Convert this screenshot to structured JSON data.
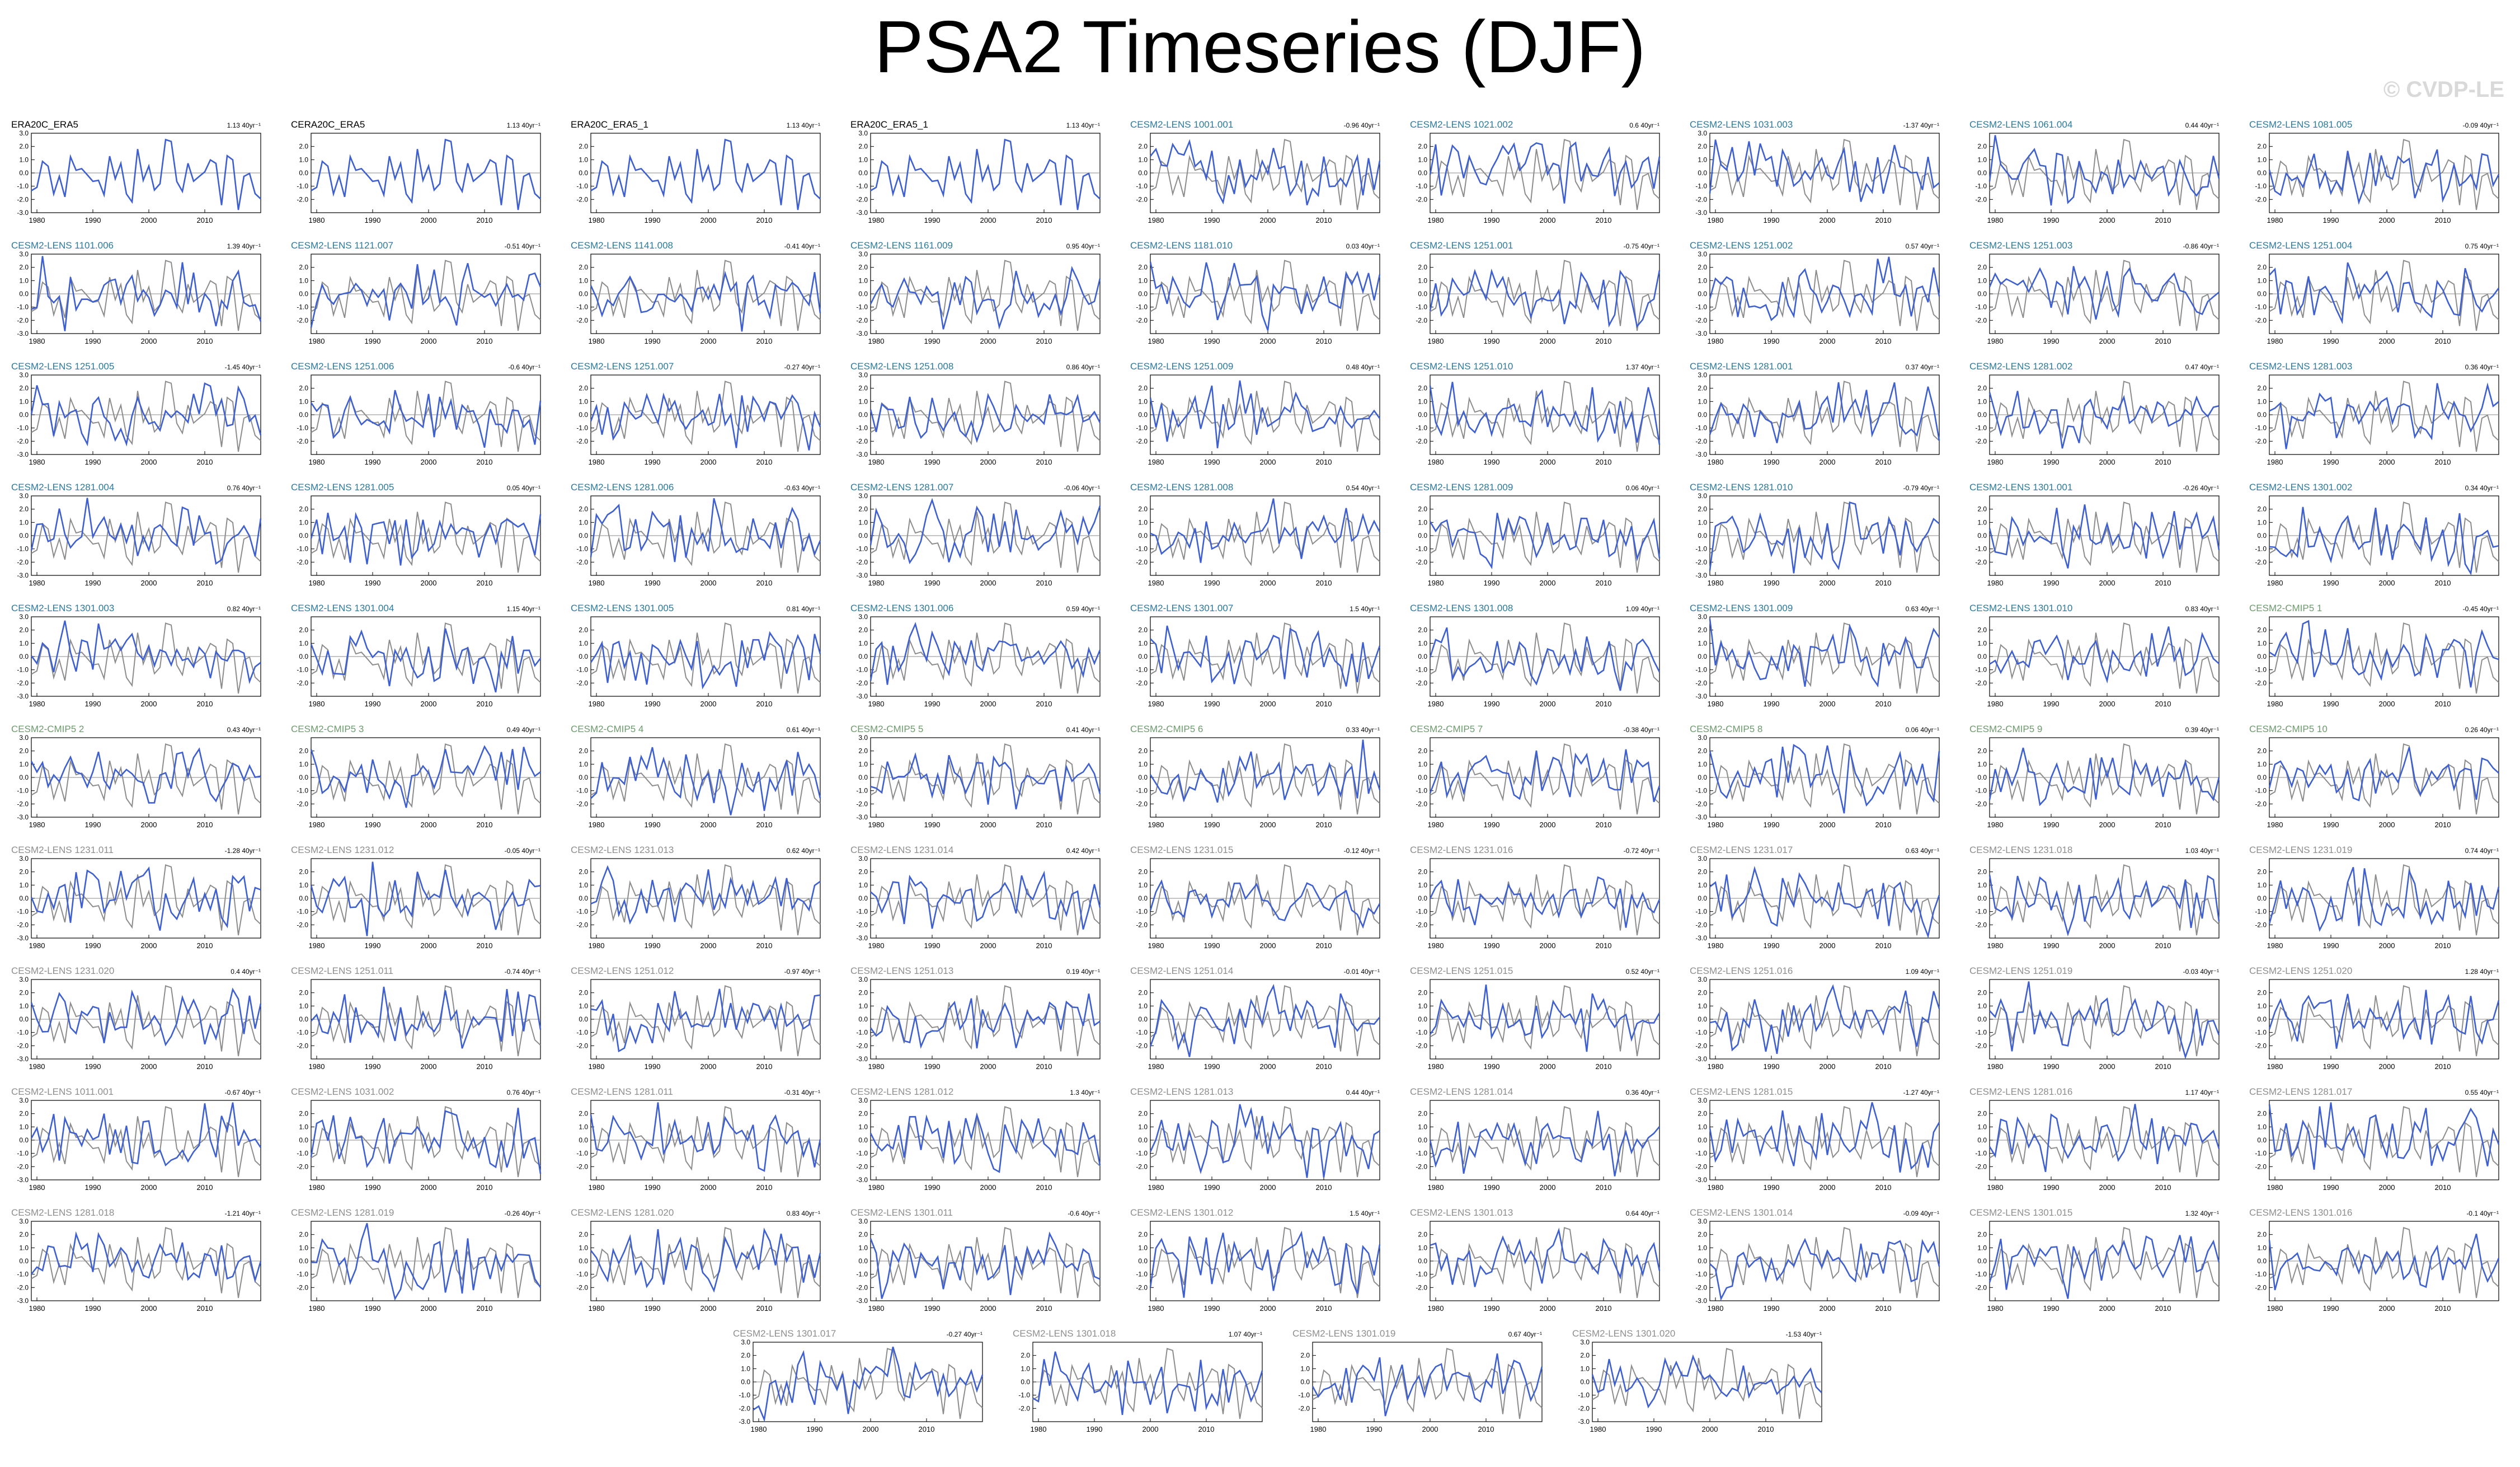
{
  "title": "PSA2 Timeseries (DJF)",
  "watermark": "© CVDP-LE",
  "colors": {
    "model_line": "#3d5fcf",
    "observation_line": "#8c8c8c",
    "zero_line": "#888888",
    "title_black": "#000000",
    "title_blue": "#2a7a9e",
    "title_green": "#6c9a6c",
    "title_gray": "#8e8e8e"
  },
  "chart_data": {
    "type": "line",
    "panel_count": 94,
    "x_ticks": [
      1980,
      1990,
      2000,
      2010
    ],
    "xlim": [
      1979,
      2020
    ],
    "y_ticks": [
      "-3.0",
      "-2.0",
      "-1.0",
      "0.0",
      "1.0",
      "2.0",
      "3.0"
    ],
    "ylim": [
      -3.0,
      3.0
    ],
    "panels": [
      {
        "title": "ERA20C_ERA5",
        "trend": "1.13 40yr⁻¹",
        "title_color": "black"
      },
      {
        "title": "CERA20C_ERA5",
        "trend": "1.13 40yr⁻¹",
        "title_color": "black"
      },
      {
        "title": "ERA20C_ERA5_1",
        "trend": "1.13 40yr⁻¹",
        "title_color": "black"
      },
      {
        "title": "ERA20C_ERA5_1",
        "trend": "1.13 40yr⁻¹",
        "title_color": "black"
      },
      {
        "title": "CESM2-LENS 1001.001",
        "trend": "-0.96 40yr⁻¹",
        "title_color": "blue"
      },
      {
        "title": "CESM2-LENS 1021.002",
        "trend": "0.6 40yr⁻¹",
        "title_color": "blue"
      },
      {
        "title": "CESM2-LENS 1031.003",
        "trend": "-1.37 40yr⁻¹",
        "title_color": "blue"
      },
      {
        "title": "CESM2-LENS 1061.004",
        "trend": "0.44 40yr⁻¹",
        "title_color": "blue"
      },
      {
        "title": "CESM2-LENS 1081.005",
        "trend": "-0.09 40yr⁻¹",
        "title_color": "blue"
      },
      {
        "title": "CESM2-LENS 1101.006",
        "trend": "1.39 40yr⁻¹",
        "title_color": "blue"
      },
      {
        "title": "CESM2-LENS 1121.007",
        "trend": "-0.51 40yr⁻¹",
        "title_color": "blue"
      },
      {
        "title": "CESM2-LENS 1141.008",
        "trend": "-0.41 40yr⁻¹",
        "title_color": "blue"
      },
      {
        "title": "CESM2-LENS 1161.009",
        "trend": "0.95 40yr⁻¹",
        "title_color": "blue"
      },
      {
        "title": "CESM2-LENS 1181.010",
        "trend": "0.03 40yr⁻¹",
        "title_color": "blue"
      },
      {
        "title": "CESM2-LENS 1251.001",
        "trend": "-0.75 40yr⁻¹",
        "title_color": "blue"
      },
      {
        "title": "CESM2-LENS 1251.002",
        "trend": "0.57 40yr⁻¹",
        "title_color": "blue"
      },
      {
        "title": "CESM2-LENS 1251.003",
        "trend": "-0.86 40yr⁻¹",
        "title_color": "blue"
      },
      {
        "title": "CESM2-LENS 1251.004",
        "trend": "0.75 40yr⁻¹",
        "title_color": "blue"
      },
      {
        "title": "CESM2-LENS 1251.005",
        "trend": "-1.45 40yr⁻¹",
        "title_color": "blue"
      },
      {
        "title": "CESM2-LENS 1251.006",
        "trend": "-0.6 40yr⁻¹",
        "title_color": "blue"
      },
      {
        "title": "CESM2-LENS 1251.007",
        "trend": "-0.27 40yr⁻¹",
        "title_color": "blue"
      },
      {
        "title": "CESM2-LENS 1251.008",
        "trend": "0.86 40yr⁻¹",
        "title_color": "blue"
      },
      {
        "title": "CESM2-LENS 1251.009",
        "trend": "0.48 40yr⁻¹",
        "title_color": "blue"
      },
      {
        "title": "CESM2-LENS 1251.010",
        "trend": "1.37 40yr⁻¹",
        "title_color": "blue"
      },
      {
        "title": "CESM2-LENS 1281.001",
        "trend": "0.37 40yr⁻¹",
        "title_color": "blue"
      },
      {
        "title": "CESM2-LENS 1281.002",
        "trend": "0.47 40yr⁻¹",
        "title_color": "blue"
      },
      {
        "title": "CESM2-LENS 1281.003",
        "trend": "0.36 40yr⁻¹",
        "title_color": "blue"
      },
      {
        "title": "CESM2-LENS 1281.004",
        "trend": "0.76 40yr⁻¹",
        "title_color": "blue"
      },
      {
        "title": "CESM2-LENS 1281.005",
        "trend": "0.05 40yr⁻¹",
        "title_color": "blue"
      },
      {
        "title": "CESM2-LENS 1281.006",
        "trend": "-0.63 40yr⁻¹",
        "title_color": "blue"
      },
      {
        "title": "CESM2-LENS 1281.007",
        "trend": "-0.06 40yr⁻¹",
        "title_color": "blue"
      },
      {
        "title": "CESM2-LENS 1281.008",
        "trend": "0.54 40yr⁻¹",
        "title_color": "blue"
      },
      {
        "title": "CESM2-LENS 1281.009",
        "trend": "0.06 40yr⁻¹",
        "title_color": "blue"
      },
      {
        "title": "CESM2-LENS 1281.010",
        "trend": "-0.79 40yr⁻¹",
        "title_color": "blue"
      },
      {
        "title": "CESM2-LENS 1301.001",
        "trend": "-0.26 40yr⁻¹",
        "title_color": "blue"
      },
      {
        "title": "CESM2-LENS 1301.002",
        "trend": "0.34 40yr⁻¹",
        "title_color": "blue"
      },
      {
        "title": "CESM2-LENS 1301.003",
        "trend": "0.82 40yr⁻¹",
        "title_color": "blue"
      },
      {
        "title": "CESM2-LENS 1301.004",
        "trend": "1.15 40yr⁻¹",
        "title_color": "blue"
      },
      {
        "title": "CESM2-LENS 1301.005",
        "trend": "0.81 40yr⁻¹",
        "title_color": "blue"
      },
      {
        "title": "CESM2-LENS 1301.006",
        "trend": "0.59 40yr⁻¹",
        "title_color": "blue"
      },
      {
        "title": "CESM2-LENS 1301.007",
        "trend": "1.5 40yr⁻¹",
        "title_color": "blue"
      },
      {
        "title": "CESM2-LENS 1301.008",
        "trend": "1.09 40yr⁻¹",
        "title_color": "blue"
      },
      {
        "title": "CESM2-LENS 1301.009",
        "trend": "0.63 40yr⁻¹",
        "title_color": "blue"
      },
      {
        "title": "CESM2-LENS 1301.010",
        "trend": "0.83 40yr⁻¹",
        "title_color": "blue"
      },
      {
        "title": "CESM2-CMIP5 1",
        "trend": "-0.45 40yr⁻¹",
        "title_color": "green"
      },
      {
        "title": "CESM2-CMIP5 2",
        "trend": "0.43 40yr⁻¹",
        "title_color": "green"
      },
      {
        "title": "CESM2-CMIP5 3",
        "trend": "0.49 40yr⁻¹",
        "title_color": "green"
      },
      {
        "title": "CESM2-CMIP5 4",
        "trend": "0.61 40yr⁻¹",
        "title_color": "green"
      },
      {
        "title": "CESM2-CMIP5 5",
        "trend": "0.41 40yr⁻¹",
        "title_color": "green"
      },
      {
        "title": "CESM2-CMIP5 6",
        "trend": "0.33 40yr⁻¹",
        "title_color": "green"
      },
      {
        "title": "CESM2-CMIP5 7",
        "trend": "-0.38 40yr⁻¹",
        "title_color": "green"
      },
      {
        "title": "CESM2-CMIP5 8",
        "trend": "0.06 40yr⁻¹",
        "title_color": "green"
      },
      {
        "title": "CESM2-CMIP5 9",
        "trend": "0.39 40yr⁻¹",
        "title_color": "green"
      },
      {
        "title": "CESM2-CMIP5 10",
        "trend": "0.26 40yr⁻¹",
        "title_color": "green"
      },
      {
        "title": "CESM2-LENS 1231.011",
        "trend": "-1.28 40yr⁻¹",
        "title_color": "gray"
      },
      {
        "title": "CESM2-LENS 1231.012",
        "trend": "-0.05 40yr⁻¹",
        "title_color": "gray"
      },
      {
        "title": "CESM2-LENS 1231.013",
        "trend": "0.62 40yr⁻¹",
        "title_color": "gray"
      },
      {
        "title": "CESM2-LENS 1231.014",
        "trend": "0.42 40yr⁻¹",
        "title_color": "gray"
      },
      {
        "title": "CESM2-LENS 1231.015",
        "trend": "-0.12 40yr⁻¹",
        "title_color": "gray"
      },
      {
        "title": "CESM2-LENS 1231.016",
        "trend": "-0.72 40yr⁻¹",
        "title_color": "gray"
      },
      {
        "title": "CESM2-LENS 1231.017",
        "trend": "0.63 40yr⁻¹",
        "title_color": "gray"
      },
      {
        "title": "CESM2-LENS 1231.018",
        "trend": "1.03 40yr⁻¹",
        "title_color": "gray"
      },
      {
        "title": "CESM2-LENS 1231.019",
        "trend": "0.74 40yr⁻¹",
        "title_color": "gray"
      },
      {
        "title": "CESM2-LENS 1231.020",
        "trend": "0.4 40yr⁻¹",
        "title_color": "gray"
      },
      {
        "title": "CESM2-LENS 1251.011",
        "trend": "-0.74 40yr⁻¹",
        "title_color": "gray"
      },
      {
        "title": "CESM2-LENS 1251.012",
        "trend": "-0.97 40yr⁻¹",
        "title_color": "gray"
      },
      {
        "title": "CESM2-LENS 1251.013",
        "trend": "0.19 40yr⁻¹",
        "title_color": "gray"
      },
      {
        "title": "CESM2-LENS 1251.014",
        "trend": "-0.01 40yr⁻¹",
        "title_color": "gray"
      },
      {
        "title": "CESM2-LENS 1251.015",
        "trend": "0.52 40yr⁻¹",
        "title_color": "gray"
      },
      {
        "title": "CESM2-LENS 1251.016",
        "trend": "1.09 40yr⁻¹",
        "title_color": "gray"
      },
      {
        "title": "CESM2-LENS 1251.019",
        "trend": "-0.03 40yr⁻¹",
        "title_color": "gray"
      },
      {
        "title": "CESM2-LENS 1251.020",
        "trend": "1.28 40yr⁻¹",
        "title_color": "gray"
      },
      {
        "title": "CESM2-LENS 1011.001",
        "trend": "-0.67 40yr⁻¹",
        "title_color": "gray"
      },
      {
        "title": "CESM2-LENS 1031.002",
        "trend": "0.76 40yr⁻¹",
        "title_color": "gray"
      },
      {
        "title": "CESM2-LENS 1281.011",
        "trend": "-0.31 40yr⁻¹",
        "title_color": "gray"
      },
      {
        "title": "CESM2-LENS 1281.012",
        "trend": "1.3 40yr⁻¹",
        "title_color": "gray"
      },
      {
        "title": "CESM2-LENS 1281.013",
        "trend": "0.44 40yr⁻¹",
        "title_color": "gray"
      },
      {
        "title": "CESM2-LENS 1281.014",
        "trend": "0.36 40yr⁻¹",
        "title_color": "gray"
      },
      {
        "title": "CESM2-LENS 1281.015",
        "trend": "-1.27 40yr⁻¹",
        "title_color": "gray"
      },
      {
        "title": "CESM2-LENS 1281.016",
        "trend": "1.17 40yr⁻¹",
        "title_color": "gray"
      },
      {
        "title": "CESM2-LENS 1281.017",
        "trend": "0.55 40yr⁻¹",
        "title_color": "gray"
      },
      {
        "title": "CESM2-LENS 1281.018",
        "trend": "-1.21 40yr⁻¹",
        "title_color": "gray"
      },
      {
        "title": "CESM2-LENS 1281.019",
        "trend": "-0.26 40yr⁻¹",
        "title_color": "gray"
      },
      {
        "title": "CESM2-LENS 1281.020",
        "trend": "0.83 40yr⁻¹",
        "title_color": "gray"
      },
      {
        "title": "CESM2-LENS 1301.011",
        "trend": "-0.6 40yr⁻¹",
        "title_color": "gray"
      },
      {
        "title": "CESM2-LENS 1301.012",
        "trend": "1.5 40yr⁻¹",
        "title_color": "gray"
      },
      {
        "title": "CESM2-LENS 1301.013",
        "trend": "0.64 40yr⁻¹",
        "title_color": "gray"
      },
      {
        "title": "CESM2-LENS 1301.014",
        "trend": "-0.09 40yr⁻¹",
        "title_color": "gray"
      },
      {
        "title": "CESM2-LENS 1301.015",
        "trend": "1.32 40yr⁻¹",
        "title_color": "gray"
      },
      {
        "title": "CESM2-LENS 1301.016",
        "trend": "-0.1 40yr⁻¹",
        "title_color": "gray"
      },
      {
        "title": "CESM2-LENS 1301.017",
        "trend": "-0.27 40yr⁻¹",
        "title_color": "gray"
      },
      {
        "title": "CESM2-LENS 1301.018",
        "trend": "1.07 40yr⁻¹",
        "title_color": "gray"
      },
      {
        "title": "CESM2-LENS 1301.019",
        "trend": "0.67 40yr⁻¹",
        "title_color": "gray"
      },
      {
        "title": "CESM2-LENS 1301.020",
        "trend": "-1.53 40yr⁻¹",
        "title_color": "gray"
      }
    ]
  }
}
